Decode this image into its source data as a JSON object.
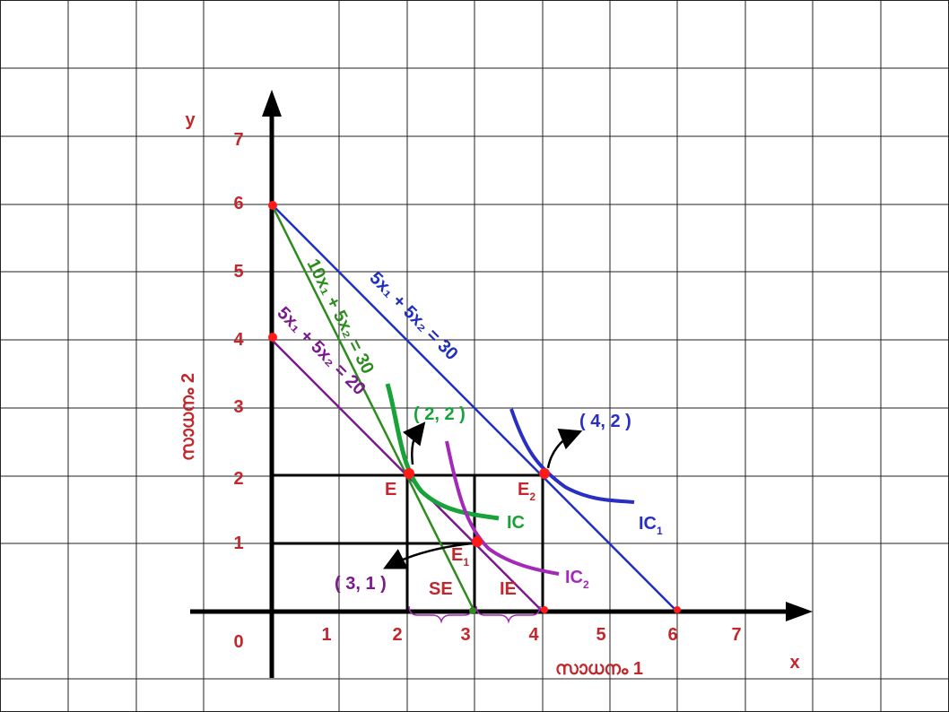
{
  "axes": {
    "x_label": "x",
    "y_label": "y",
    "x_title": "സാധനം 1",
    "y_title": "സാധനം 2",
    "origin_label": "0",
    "x_ticks": [
      "1",
      "2",
      "3",
      "4",
      "5",
      "6",
      "7"
    ],
    "y_ticks": [
      "1",
      "2",
      "3",
      "4",
      "5",
      "6",
      "7"
    ]
  },
  "budget_lines": {
    "original": {
      "text": "5x₁ + 5x₂ = 30",
      "from": [
        0,
        6
      ],
      "to": [
        6,
        0
      ],
      "color": "#1f2fbf"
    },
    "compensated": {
      "text": "10x₁ + 5x₂ = 30",
      "from": [
        0,
        6
      ],
      "to": [
        3,
        0
      ],
      "color": "#2e8b1e"
    },
    "new": {
      "text": "5x₁ + 5x₂ = 20",
      "from": [
        0,
        4
      ],
      "to": [
        4,
        0
      ],
      "color": "#7a1a8c"
    }
  },
  "points": {
    "E": {
      "label": "E",
      "coord_text": "( 2, 2 )",
      "x": 2,
      "y": 2
    },
    "E1": {
      "label": "E",
      "sub": "1",
      "coord_text": "( 3, 1 )",
      "x": 3,
      "y": 1
    },
    "E2": {
      "label": "E",
      "sub": "2",
      "coord_text": "( 4, 2 )",
      "x": 4,
      "y": 2
    }
  },
  "curves": {
    "IC": {
      "label": "IC",
      "color": "#19a23a"
    },
    "IC1": {
      "label": "IC",
      "sub": "1",
      "color": "#2a2fc4"
    },
    "IC2": {
      "label": "IC",
      "sub": "2",
      "color": "#a329b8"
    }
  },
  "effects": {
    "SE": "SE",
    "IE": "IE"
  },
  "colors": {
    "axis_labels": "#c0282d",
    "grid": "#222222",
    "points": "#ff1a1a"
  }
}
